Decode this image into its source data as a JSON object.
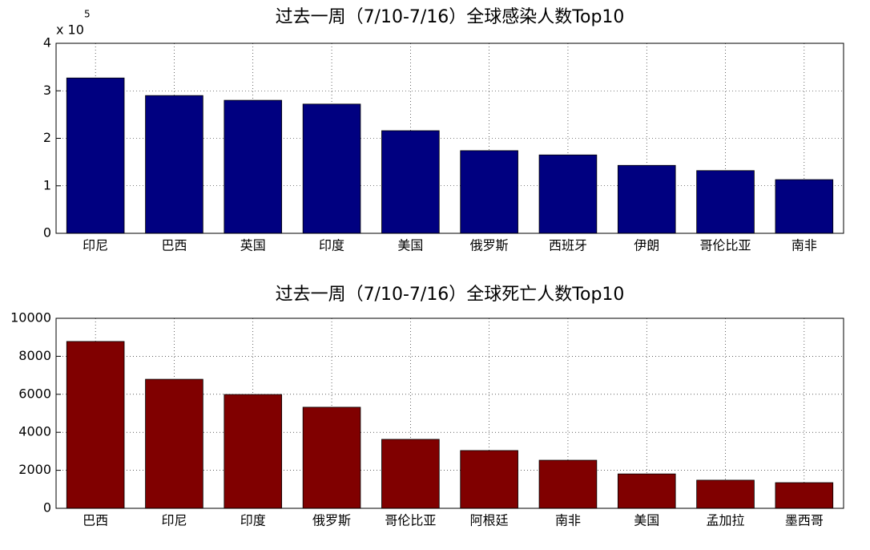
{
  "chart_data": [
    {
      "type": "bar",
      "title": "过去一周（7/10-7/16）全球感染人数Top10",
      "axis_multiplier": {
        "base": "x 10",
        "exponent": "5"
      },
      "categories": [
        "印尼",
        "巴西",
        "英国",
        "印度",
        "美国",
        "俄罗斯",
        "西班牙",
        "伊朗",
        "哥伦比亚",
        "南非"
      ],
      "values": [
        3.27,
        2.9,
        2.8,
        2.72,
        2.16,
        1.74,
        1.65,
        1.43,
        1.32,
        1.13
      ],
      "color": "#000080",
      "ylim": [
        0,
        4
      ],
      "yticks": [
        0,
        1,
        2,
        3,
        4
      ],
      "grid": true
    },
    {
      "type": "bar",
      "title": "过去一周（7/10-7/16）全球死亡人数Top10",
      "categories": [
        "巴西",
        "印尼",
        "印度",
        "俄罗斯",
        "哥伦比亚",
        "阿根廷",
        "南非",
        "美国",
        "孟加拉",
        "墨西哥"
      ],
      "values": [
        8780,
        6790,
        5990,
        5320,
        3630,
        3040,
        2530,
        1810,
        1480,
        1350
      ],
      "color": "#800000",
      "ylim": [
        0,
        10000
      ],
      "yticks": [
        0,
        2000,
        4000,
        6000,
        8000,
        10000
      ],
      "grid": true
    }
  ]
}
